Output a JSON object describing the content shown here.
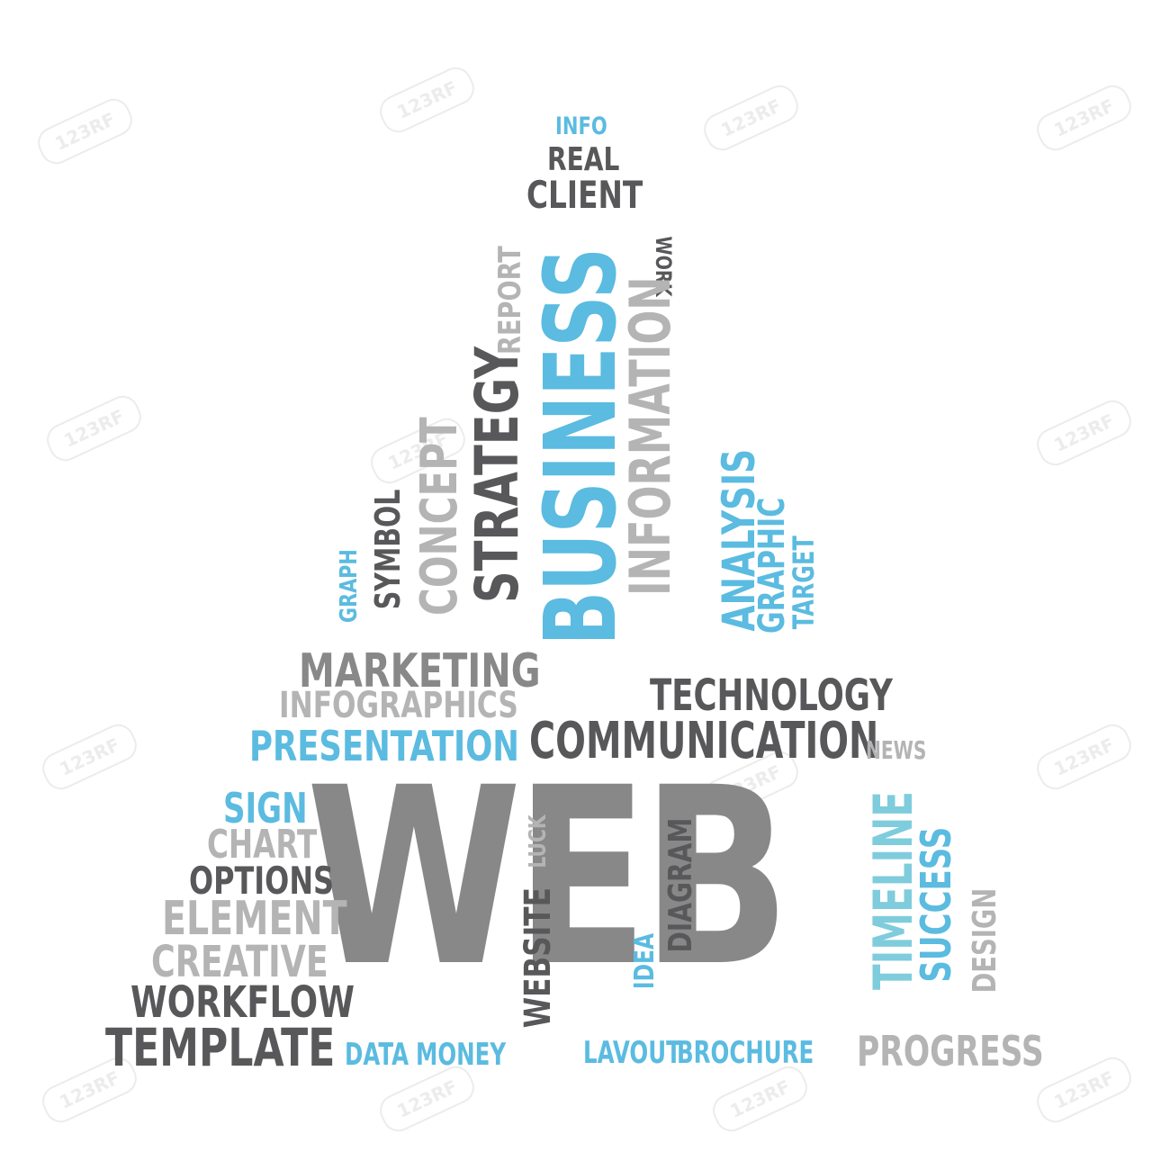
{
  "colors": {
    "dark": "#58585a",
    "mid": "#888888",
    "light": "#b4b4b4",
    "blue": "#5bbbe0",
    "teal": "#7fccdc",
    "background": "#ffffff"
  },
  "watermark": "123RF",
  "words": {
    "web": "WEB",
    "info": "INFO",
    "real": "REAL",
    "client": "CLIENT",
    "work": "WORK",
    "report": "REPORT",
    "business": "BUSINESS",
    "strategy": "STRATEGY",
    "information": "INFORMATION",
    "analysis": "ANALYSIS",
    "graphic": "GRAPHIC",
    "target": "TARGET",
    "concept": "CONCEPT",
    "symbol": "SYMBOL",
    "graph": "GRAPH",
    "marketing": "MARKETING",
    "infographics": "INFOGRAPHICS",
    "presentation": "PRESENTATION",
    "technology": "TECHNOLOGY",
    "communication": "COMMUNICATION",
    "news": "NEWS",
    "sign": "SIGN",
    "chart": "CHART",
    "options": "OPTIONS",
    "element": "ELEMENT",
    "creative": "CREATIVE",
    "workflow": "WORKFLOW",
    "template": "TEMPLATE",
    "data": "DATA",
    "money": "MONEY",
    "website": "WEBSITE",
    "luck": "LUCK",
    "diagram": "DIAGRAM",
    "idea": "IDEA",
    "layout": "LAVOUT",
    "brochure": "BROCHURE",
    "timeline": "TIMELINE",
    "success": "SUCCESS",
    "design": "DESIGN",
    "progress": "PROGRESS"
  }
}
